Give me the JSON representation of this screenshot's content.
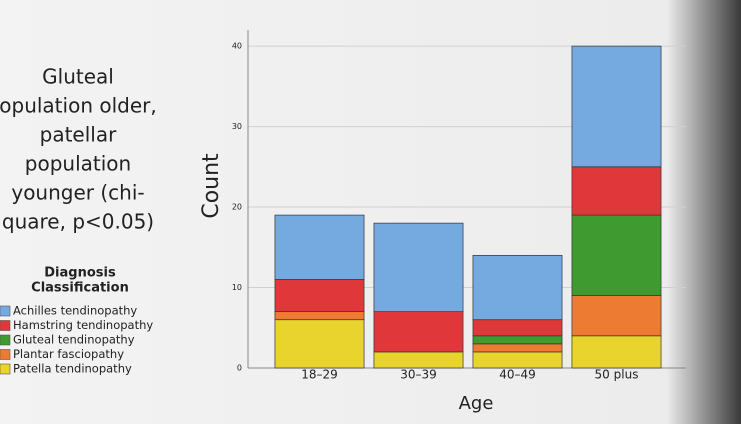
{
  "chart_data": {
    "type": "stacked_bar",
    "annotation_lines": [
      "Gluteal",
      "opulation older,",
      "patellar",
      "population",
      "younger (chi-",
      "quare, p<0.05)"
    ],
    "legend_title": [
      "Diagnosis",
      "Classification"
    ],
    "x_label": "Age",
    "y_label": "Count",
    "categories": [
      "18–29",
      "30–39",
      "40–49",
      "50 plus"
    ],
    "series": [
      {
        "name": "Achilles tendinopathy",
        "color": "#75aae0",
        "values": [
          8,
          11,
          8,
          15
        ]
      },
      {
        "name": "Hamstring tendinopathy",
        "color": "#e0383a",
        "values": [
          4,
          5,
          2,
          6
        ]
      },
      {
        "name": "Gluteal tendinopathy",
        "color": "#3f9a30",
        "values": [
          0,
          0,
          1,
          10
        ]
      },
      {
        "name": "Plantar fasciopathy",
        "color": "#ee7b32",
        "values": [
          1,
          0,
          1,
          5
        ]
      },
      {
        "name": "Patella tendinopathy",
        "color": "#e8d42c",
        "values": [
          6,
          2,
          2,
          4
        ]
      }
    ],
    "ylim": [
      0,
      42
    ],
    "yticks": [
      0,
      10,
      20,
      30,
      40
    ],
    "grid": true
  }
}
